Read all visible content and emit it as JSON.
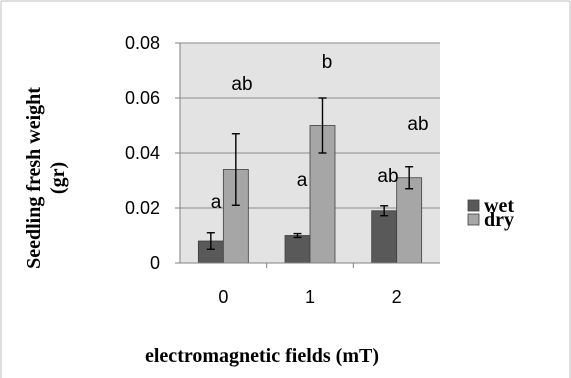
{
  "chart_data": {
    "type": "bar",
    "categories": [
      "0",
      "1",
      "2"
    ],
    "series": [
      {
        "name": "wet",
        "color": "#595959",
        "values": [
          0.008,
          0.01,
          0.019
        ],
        "errors": [
          0.003,
          0.0007,
          0.0018
        ],
        "sig_labels": [
          "a",
          "a",
          "ab"
        ]
      },
      {
        "name": "dry",
        "color": "#a6a6a6",
        "values": [
          0.034,
          0.05,
          0.031
        ],
        "errors": [
          0.013,
          0.01,
          0.004
        ],
        "sig_labels": [
          "ab",
          "b",
          "ab"
        ]
      }
    ],
    "xlabel": "electromagnetic fields (mT)",
    "ylabel": "Seedling fresh  weight (gr)",
    "ylabel_line1": "Seedling fresh  weight",
    "ylabel_line2": "(gr)",
    "yticks": [
      "0",
      "0.02",
      "0.04",
      "0.06",
      "0.08"
    ],
    "ylim": [
      0,
      0.08
    ],
    "grid": true,
    "legend_position": "right",
    "plot_background": "#e3e3e3"
  }
}
